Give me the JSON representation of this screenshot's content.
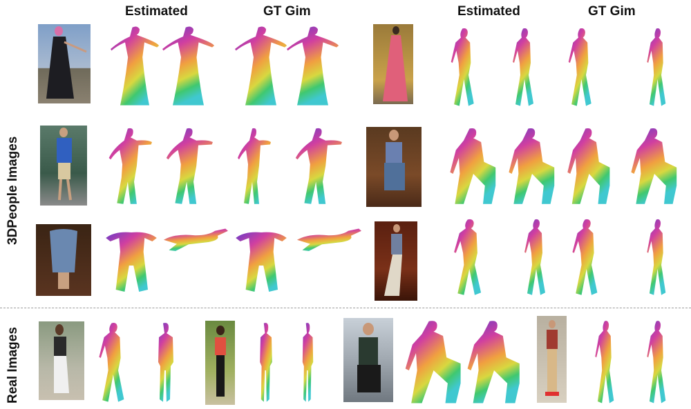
{
  "header": {
    "left_estimated": "Estimated",
    "left_gt": "GT Gim",
    "right_estimated": "Estimated",
    "right_gt": "GT Gim"
  },
  "rows": {
    "synthetic_label": "3DPeople Images",
    "real_label": "Real Images"
  },
  "figures": [
    {
      "pose": "stand-arm"
    },
    {
      "pose": "stand-arm"
    },
    {
      "pose": "stand-arm"
    },
    {
      "pose": "stand-arm"
    },
    {
      "pose": "walk"
    },
    {
      "pose": "walk"
    },
    {
      "pose": "walk"
    },
    {
      "pose": "walk"
    },
    {
      "pose": "dance"
    },
    {
      "pose": "dance"
    },
    {
      "pose": "dance"
    },
    {
      "pose": "dance"
    },
    {
      "pose": "sit"
    },
    {
      "pose": "sit"
    },
    {
      "pose": "sit"
    },
    {
      "pose": "sit"
    },
    {
      "pose": "bend"
    },
    {
      "pose": "flat"
    },
    {
      "pose": "bend"
    },
    {
      "pose": "flat"
    },
    {
      "pose": "walk"
    },
    {
      "pose": "walk"
    },
    {
      "pose": "walk"
    },
    {
      "pose": "walk"
    },
    {
      "pose": "walk"
    },
    {
      "pose": "stand"
    },
    {
      "pose": "stand"
    },
    {
      "pose": "stand"
    },
    {
      "pose": "sit"
    },
    {
      "pose": "sit"
    },
    {
      "pose": "walk"
    },
    {
      "pose": "walk"
    }
  ],
  "palette": {
    "purple": "#6a3cc8",
    "magenta": "#d03fa0",
    "orange": "#f0a040",
    "yellow": "#d8d840",
    "green": "#40c870",
    "cyan": "#40c8d0",
    "blue": "#4060d0"
  }
}
